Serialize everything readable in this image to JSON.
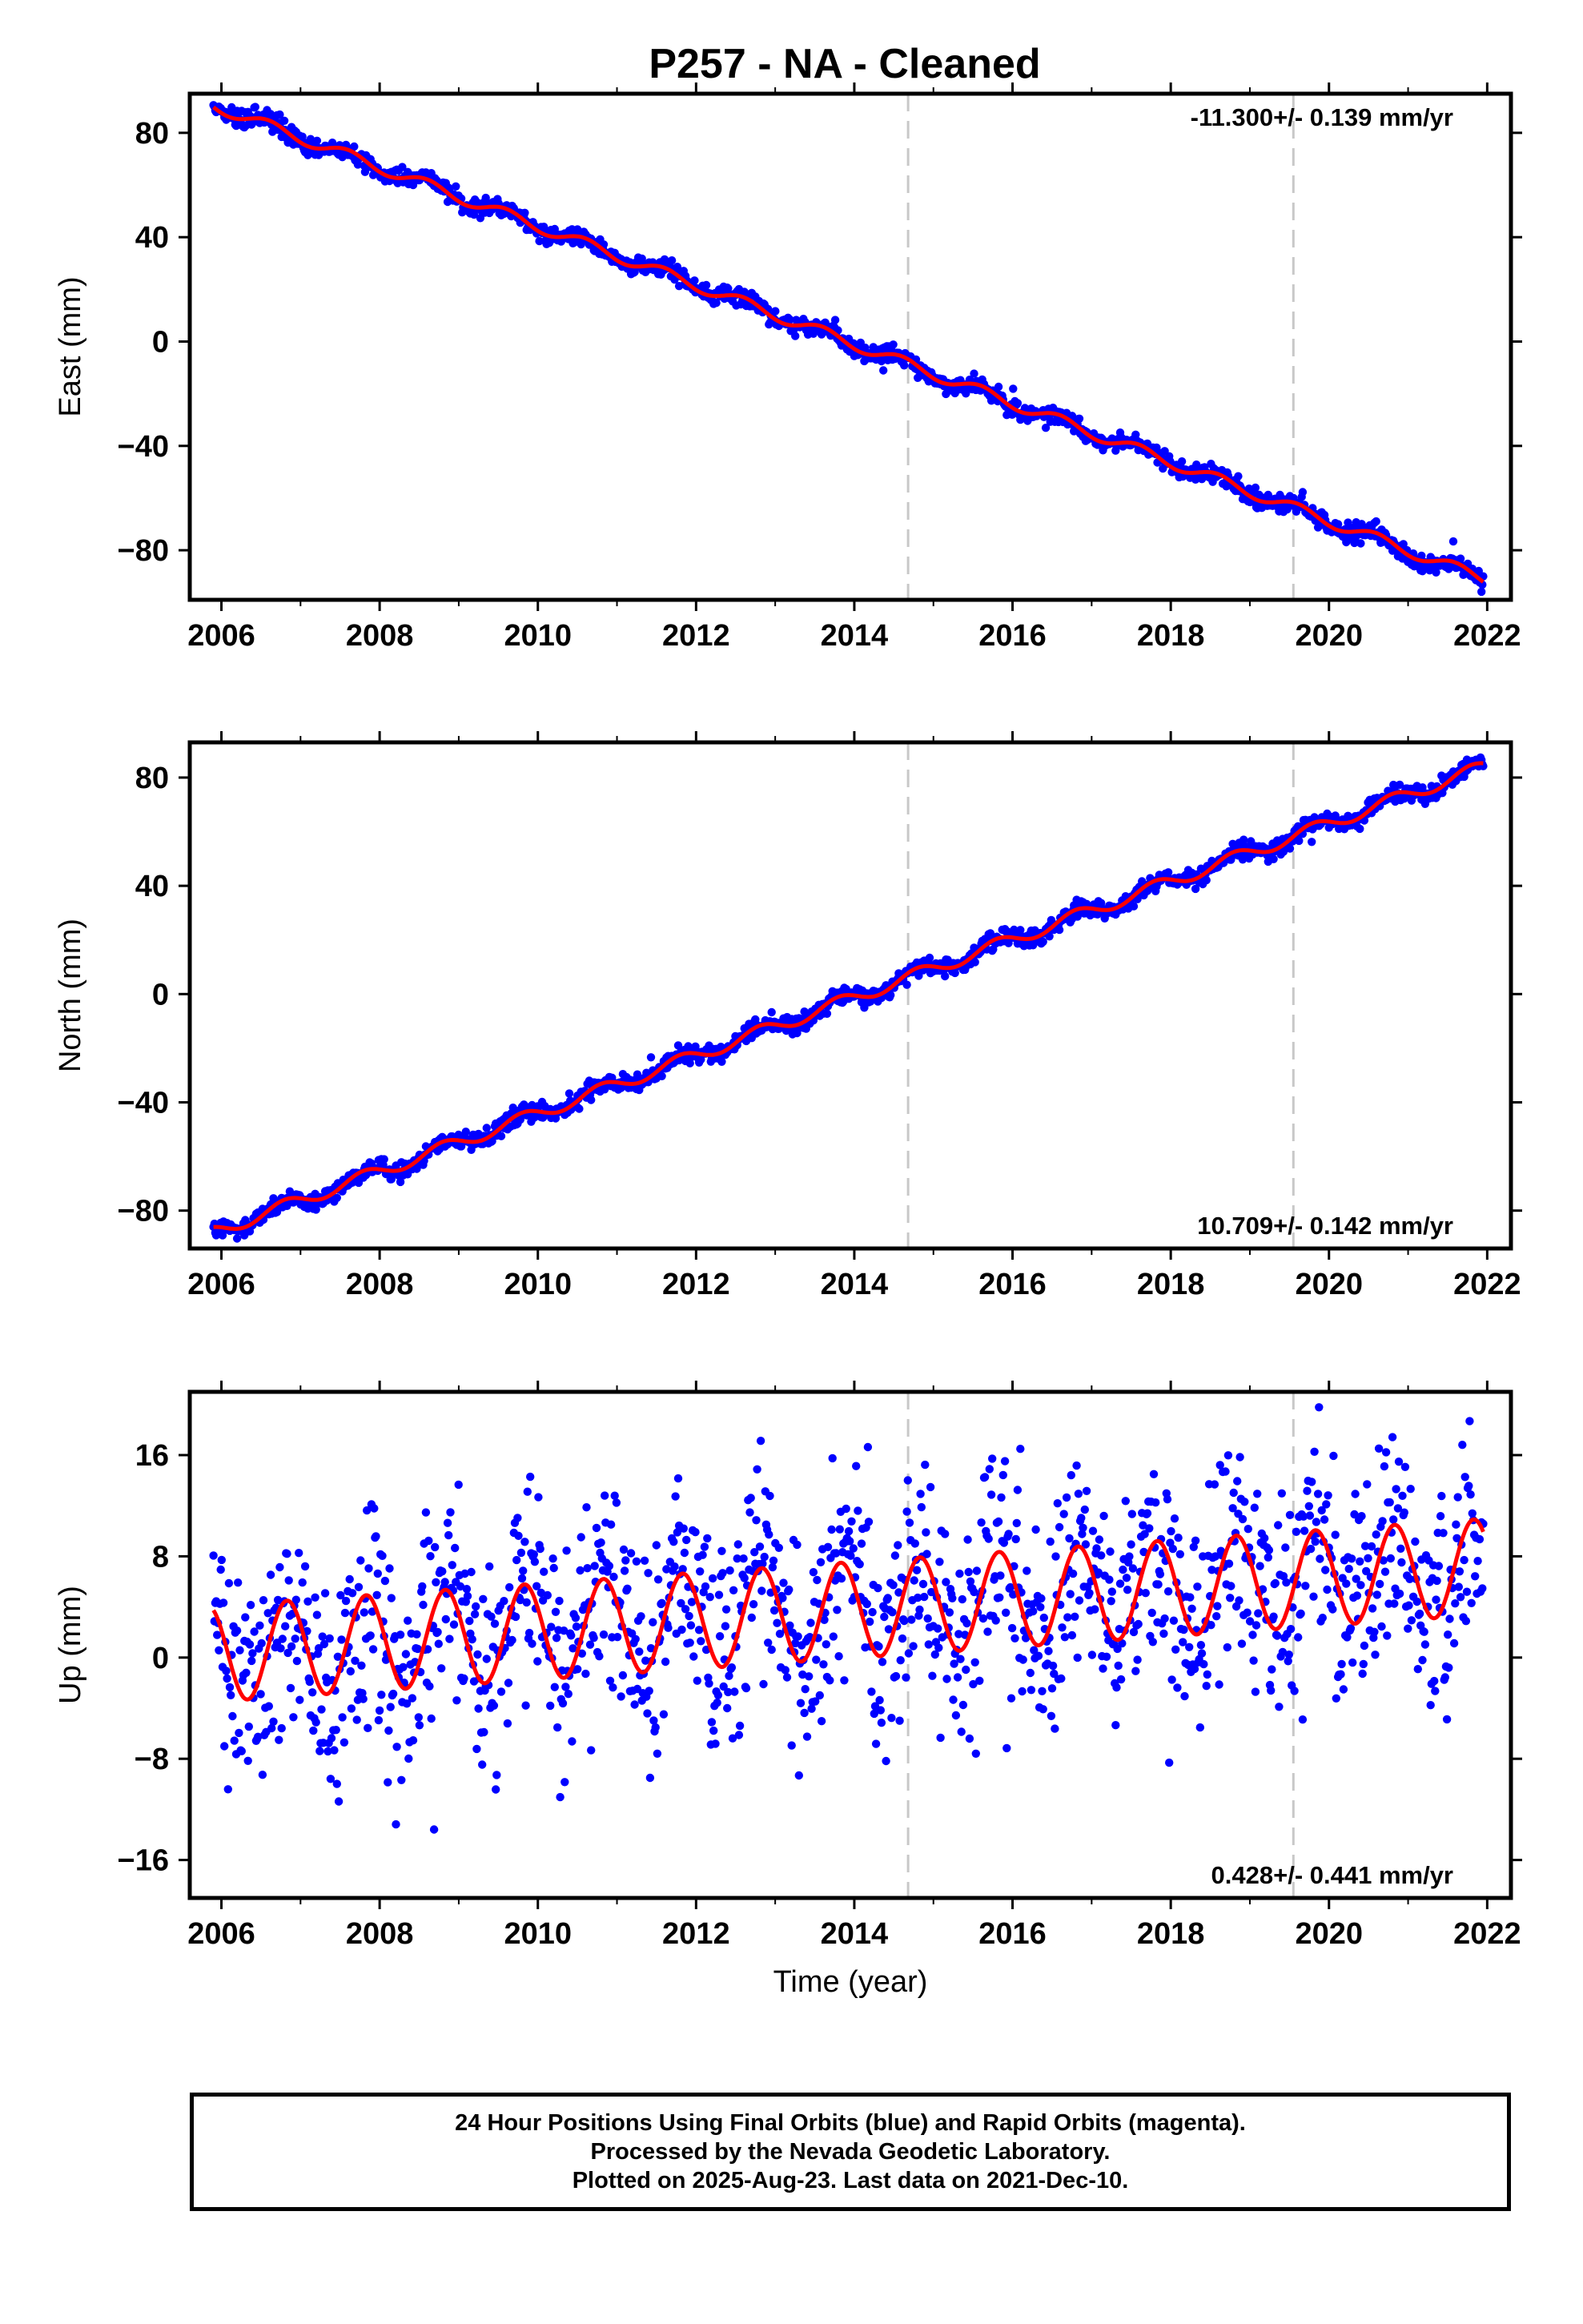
{
  "title": "P257  - NA - Cleaned",
  "colors": {
    "points": "#0000ff",
    "model": "#ff0000",
    "breaks": "#c8c8c8",
    "frame": "#000000"
  },
  "chart_data": [
    {
      "type": "scatter",
      "component": "east",
      "ylabel": "East (mm)",
      "xlabel": "",
      "xlim": [
        2005.6,
        2022.3
      ],
      "ylim": [
        -99,
        95
      ],
      "xticks": [
        2006,
        2008,
        2010,
        2012,
        2014,
        2016,
        2018,
        2020,
        2022
      ],
      "yticks": [
        -80,
        -40,
        0,
        40,
        80
      ],
      "rate_label": "-11.300+/- 0.139 mm/yr",
      "rate_position": "top-right",
      "start": 2005.9,
      "end": 2021.95,
      "intercept": 90.5,
      "slope": -11.3,
      "seasonal_amplitude": 2.2,
      "seasonal_phase": 0.35,
      "noise": 1.7,
      "breaks": [
        2014.68,
        2019.55
      ]
    },
    {
      "type": "scatter",
      "component": "north",
      "ylabel": "North (mm)",
      "xlabel": "",
      "xlim": [
        2005.6,
        2022.3
      ],
      "ylim": [
        -94,
        93
      ],
      "xticks": [
        2006,
        2008,
        2010,
        2012,
        2014,
        2016,
        2018,
        2020,
        2022
      ],
      "yticks": [
        -80,
        -40,
        0,
        40,
        80
      ],
      "rate_label": "10.709+/- 0.142 mm/yr",
      "rate_position": "bottom-right",
      "start": 2005.9,
      "end": 2021.95,
      "intercept": -88,
      "slope": 10.709,
      "seasonal_amplitude": 2.4,
      "seasonal_phase": 0.55,
      "noise": 1.6,
      "breaks": [
        2014.68,
        2019.55
      ]
    },
    {
      "type": "scatter",
      "component": "up",
      "ylabel": "Up (mm)",
      "xlabel": "Time (year)",
      "xlim": [
        2005.6,
        2022.3
      ],
      "ylim": [
        -19,
        21
      ],
      "xticks": [
        2006,
        2008,
        2010,
        2012,
        2014,
        2016,
        2018,
        2020,
        2022
      ],
      "yticks": [
        -16,
        -8,
        0,
        8,
        16
      ],
      "rate_label": "0.428+/- 0.441 mm/yr",
      "rate_position": "bottom-right",
      "start": 2005.9,
      "end": 2021.95,
      "intercept": 0.3,
      "slope": 0.428,
      "seasonal_amplitude": 3.8,
      "seasonal_phase": 0.58,
      "noise": 4.2,
      "breaks": [
        2014.68,
        2019.55
      ]
    }
  ],
  "footer": {
    "line1": "24 Hour Positions Using Final Orbits (blue) and Rapid Orbits (magenta).",
    "line2": "Processed by the Nevada Geodetic Laboratory.",
    "line3": "Plotted on 2025-Aug-23. Last data on 2021-Dec-10."
  }
}
